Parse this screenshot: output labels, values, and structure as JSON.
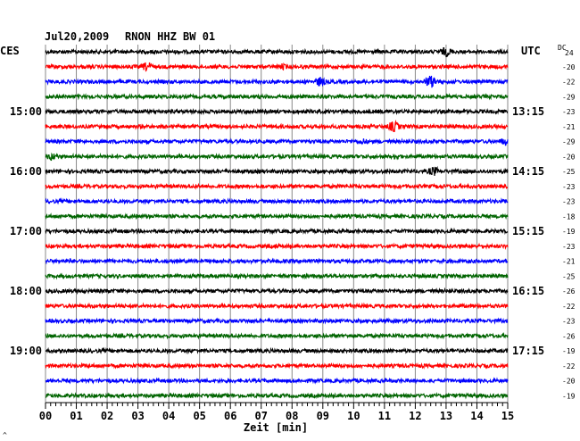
{
  "chart_data": {
    "type": "line",
    "title": "Jul20,2009",
    "station": "RNON HHZ BW 01",
    "left_timezone": "CES",
    "right_timezone": "UTC",
    "dc_label": "DC",
    "dc_top": "24",
    "xlabel": "Zeit [min]",
    "corner_mark": "^",
    "x_range": [
      0,
      15
    ],
    "x_ticks": [
      "00",
      "01",
      "02",
      "03",
      "04",
      "05",
      "06",
      "07",
      "08",
      "09",
      "10",
      "11",
      "12",
      "13",
      "14",
      "15"
    ],
    "grid": true,
    "trace_colors": [
      "#000000",
      "#ff0000",
      "#0000ff",
      "#006400"
    ],
    "left_labels": [
      {
        "row": 4,
        "text": "15:00"
      },
      {
        "row": 8,
        "text": "16:00"
      },
      {
        "row": 12,
        "text": "17:00"
      },
      {
        "row": 16,
        "text": "18:00"
      },
      {
        "row": 20,
        "text": "19:00"
      }
    ],
    "right_labels": [
      {
        "row": 4,
        "text": "13:15"
      },
      {
        "row": 8,
        "text": "14:15"
      },
      {
        "row": 12,
        "text": "15:15"
      },
      {
        "row": 16,
        "text": "16:15"
      },
      {
        "row": 20,
        "text": "17:15"
      }
    ],
    "dc_offsets": [
      "-20",
      "-22",
      "-29",
      "-23",
      "-21",
      "-29",
      "-20",
      "-25",
      "-23",
      "-23",
      "-18",
      "-19",
      "-23",
      "-21",
      "-25",
      "-26",
      "-22",
      "-23",
      "-26",
      "-19",
      "-22",
      "-20",
      "-19"
    ],
    "traces": [
      {
        "amplitude": 2,
        "events": [
          {
            "x": 13.0,
            "amp": 6
          }
        ]
      },
      {
        "amplitude": 2,
        "events": [
          {
            "x": 3.3,
            "amp": 6
          },
          {
            "x": 7.7,
            "amp": 4
          }
        ]
      },
      {
        "amplitude": 2,
        "events": [
          {
            "x": 8.9,
            "amp": 6
          },
          {
            "x": 12.5,
            "amp": 8
          }
        ]
      },
      {
        "amplitude": 2,
        "events": []
      },
      {
        "amplitude": 2,
        "events": []
      },
      {
        "amplitude": 2,
        "events": [
          {
            "x": 11.3,
            "amp": 7
          }
        ]
      },
      {
        "amplitude": 2,
        "events": [
          {
            "x": 10.3,
            "amp": 4
          },
          {
            "x": 14.9,
            "amp": 5
          }
        ]
      },
      {
        "amplitude": 2,
        "events": [
          {
            "x": 0.2,
            "amp": 5
          },
          {
            "x": 11.4,
            "amp": 4
          }
        ]
      },
      {
        "amplitude": 2,
        "events": [
          {
            "x": 7.0,
            "amp": 3
          },
          {
            "x": 12.6,
            "amp": 6
          }
        ]
      },
      {
        "amplitude": 2,
        "events": []
      },
      {
        "amplitude": 2,
        "events": []
      },
      {
        "amplitude": 2,
        "events": []
      },
      {
        "amplitude": 2,
        "events": []
      },
      {
        "amplitude": 2,
        "events": [
          {
            "x": 7.5,
            "amp": 3
          }
        ]
      },
      {
        "amplitude": 2,
        "events": [
          {
            "x": 0.8,
            "amp": 3
          }
        ]
      },
      {
        "amplitude": 2,
        "events": []
      },
      {
        "amplitude": 2,
        "events": [
          {
            "x": 2.0,
            "amp": 3
          }
        ]
      },
      {
        "amplitude": 2,
        "events": []
      },
      {
        "amplitude": 2,
        "events": []
      },
      {
        "amplitude": 2,
        "events": []
      },
      {
        "amplitude": 2,
        "events": []
      },
      {
        "amplitude": 2,
        "events": []
      },
      {
        "amplitude": 2,
        "events": []
      },
      {
        "amplitude": 2,
        "events": []
      }
    ]
  }
}
